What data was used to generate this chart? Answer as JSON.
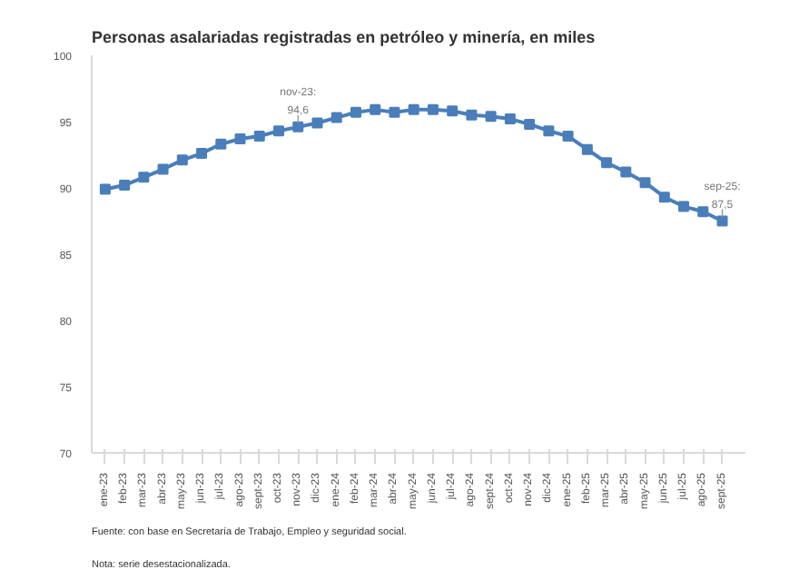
{
  "chart_data": {
    "type": "line",
    "title": "Personas asalariadas registradas en petróleo y minería, en miles",
    "categories": [
      "ene-23",
      "feb-23",
      "mar-23",
      "abr-23",
      "may-23",
      "jun-23",
      "jul-23",
      "ago-23",
      "sept-23",
      "oct-23",
      "nov-23",
      "dic-23",
      "ene-24",
      "feb-24",
      "mar-24",
      "abr-24",
      "may-24",
      "jun-24",
      "jul-24",
      "ago-24",
      "sept-24",
      "oct-24",
      "nov-24",
      "dic-24",
      "ene-25",
      "feb-25",
      "mar-25",
      "abr-25",
      "may-25",
      "jun-25",
      "jul-25",
      "ago-25",
      "sept-25"
    ],
    "series": [
      {
        "color": "#4a7ebb",
        "values": [
          89.9,
          90.2,
          90.8,
          91.4,
          92.1,
          92.6,
          93.3,
          93.7,
          93.9,
          94.3,
          94.6,
          94.9,
          95.3,
          95.7,
          95.9,
          95.7,
          95.9,
          95.9,
          95.8,
          95.5,
          95.4,
          95.2,
          94.8,
          94.3,
          93.9,
          92.9,
          91.9,
          91.2,
          90.4,
          89.3,
          88.6,
          88.2,
          87.5
        ]
      }
    ],
    "ylim": [
      70,
      100
    ],
    "yticks": [
      70,
      75,
      80,
      85,
      90,
      95,
      100
    ],
    "grid": false,
    "marker": "square",
    "line_style": "solid",
    "annotations": [
      {
        "text": "nov-23:\n94,6",
        "x": "nov-23",
        "y": 94.6
      },
      {
        "text": "sep-25:\n87,5",
        "x": "sept-25",
        "y": 87.5
      },
      "Fuente: con base en Secretaría de Trabajo, Empleo y seguridad social.",
      "Nota: serie desestacionalizada."
    ]
  }
}
